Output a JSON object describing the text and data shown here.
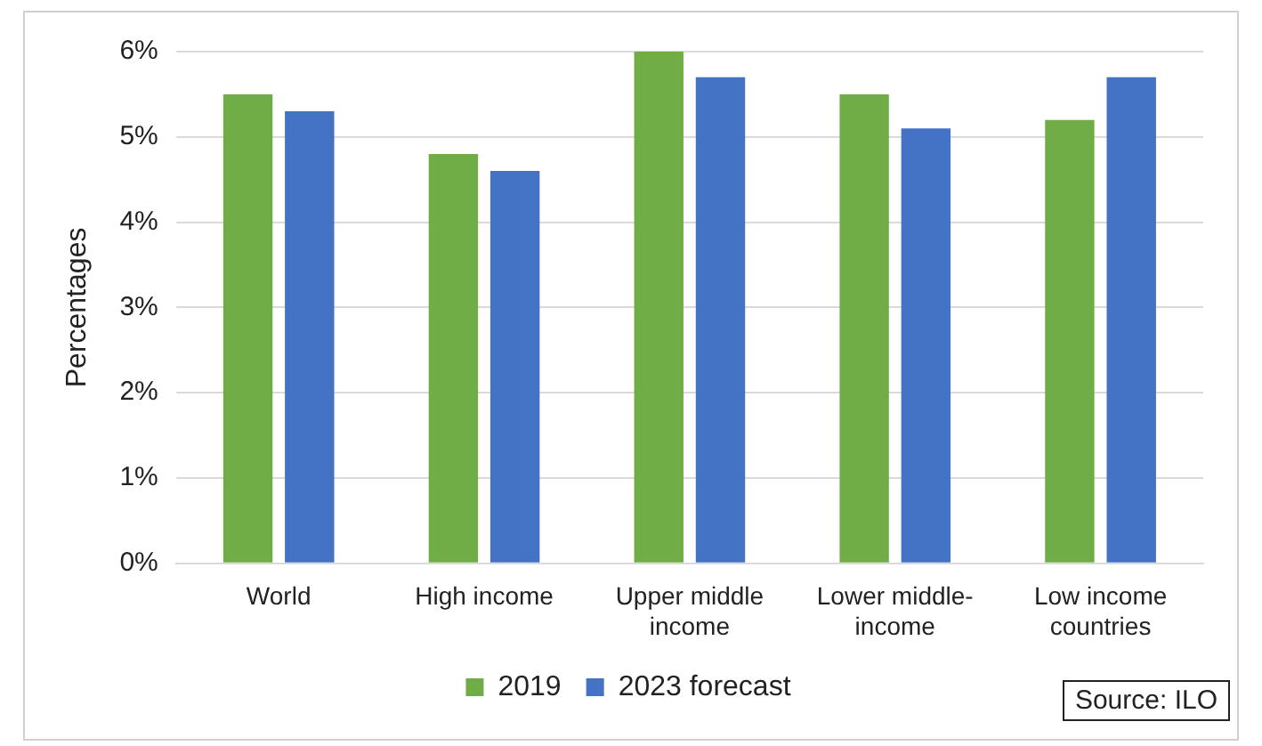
{
  "chart_data": {
    "type": "bar",
    "categories": [
      "World",
      "High income",
      "Upper middle income",
      "Lower middle-income",
      "Low income countries"
    ],
    "series": [
      {
        "name": "2019",
        "color": "#70ad47",
        "values": [
          5.5,
          4.8,
          6.0,
          5.5,
          5.2
        ]
      },
      {
        "name": "2023 forecast",
        "color": "#4472c4",
        "values": [
          5.3,
          4.6,
          5.7,
          5.1,
          5.7
        ]
      }
    ],
    "ylabel": "Percentages",
    "ylim": [
      0,
      6
    ],
    "yticks": [
      {
        "value": 0,
        "label": "0%"
      },
      {
        "value": 1,
        "label": "1%"
      },
      {
        "value": 2,
        "label": "2%"
      },
      {
        "value": 3,
        "label": "3%"
      },
      {
        "value": 4,
        "label": "4%"
      },
      {
        "value": 5,
        "label": "5%"
      },
      {
        "value": 6,
        "label": "6%"
      }
    ],
    "grid": "y",
    "legend": "bottom",
    "annotations": [
      "Source: ILO"
    ]
  }
}
